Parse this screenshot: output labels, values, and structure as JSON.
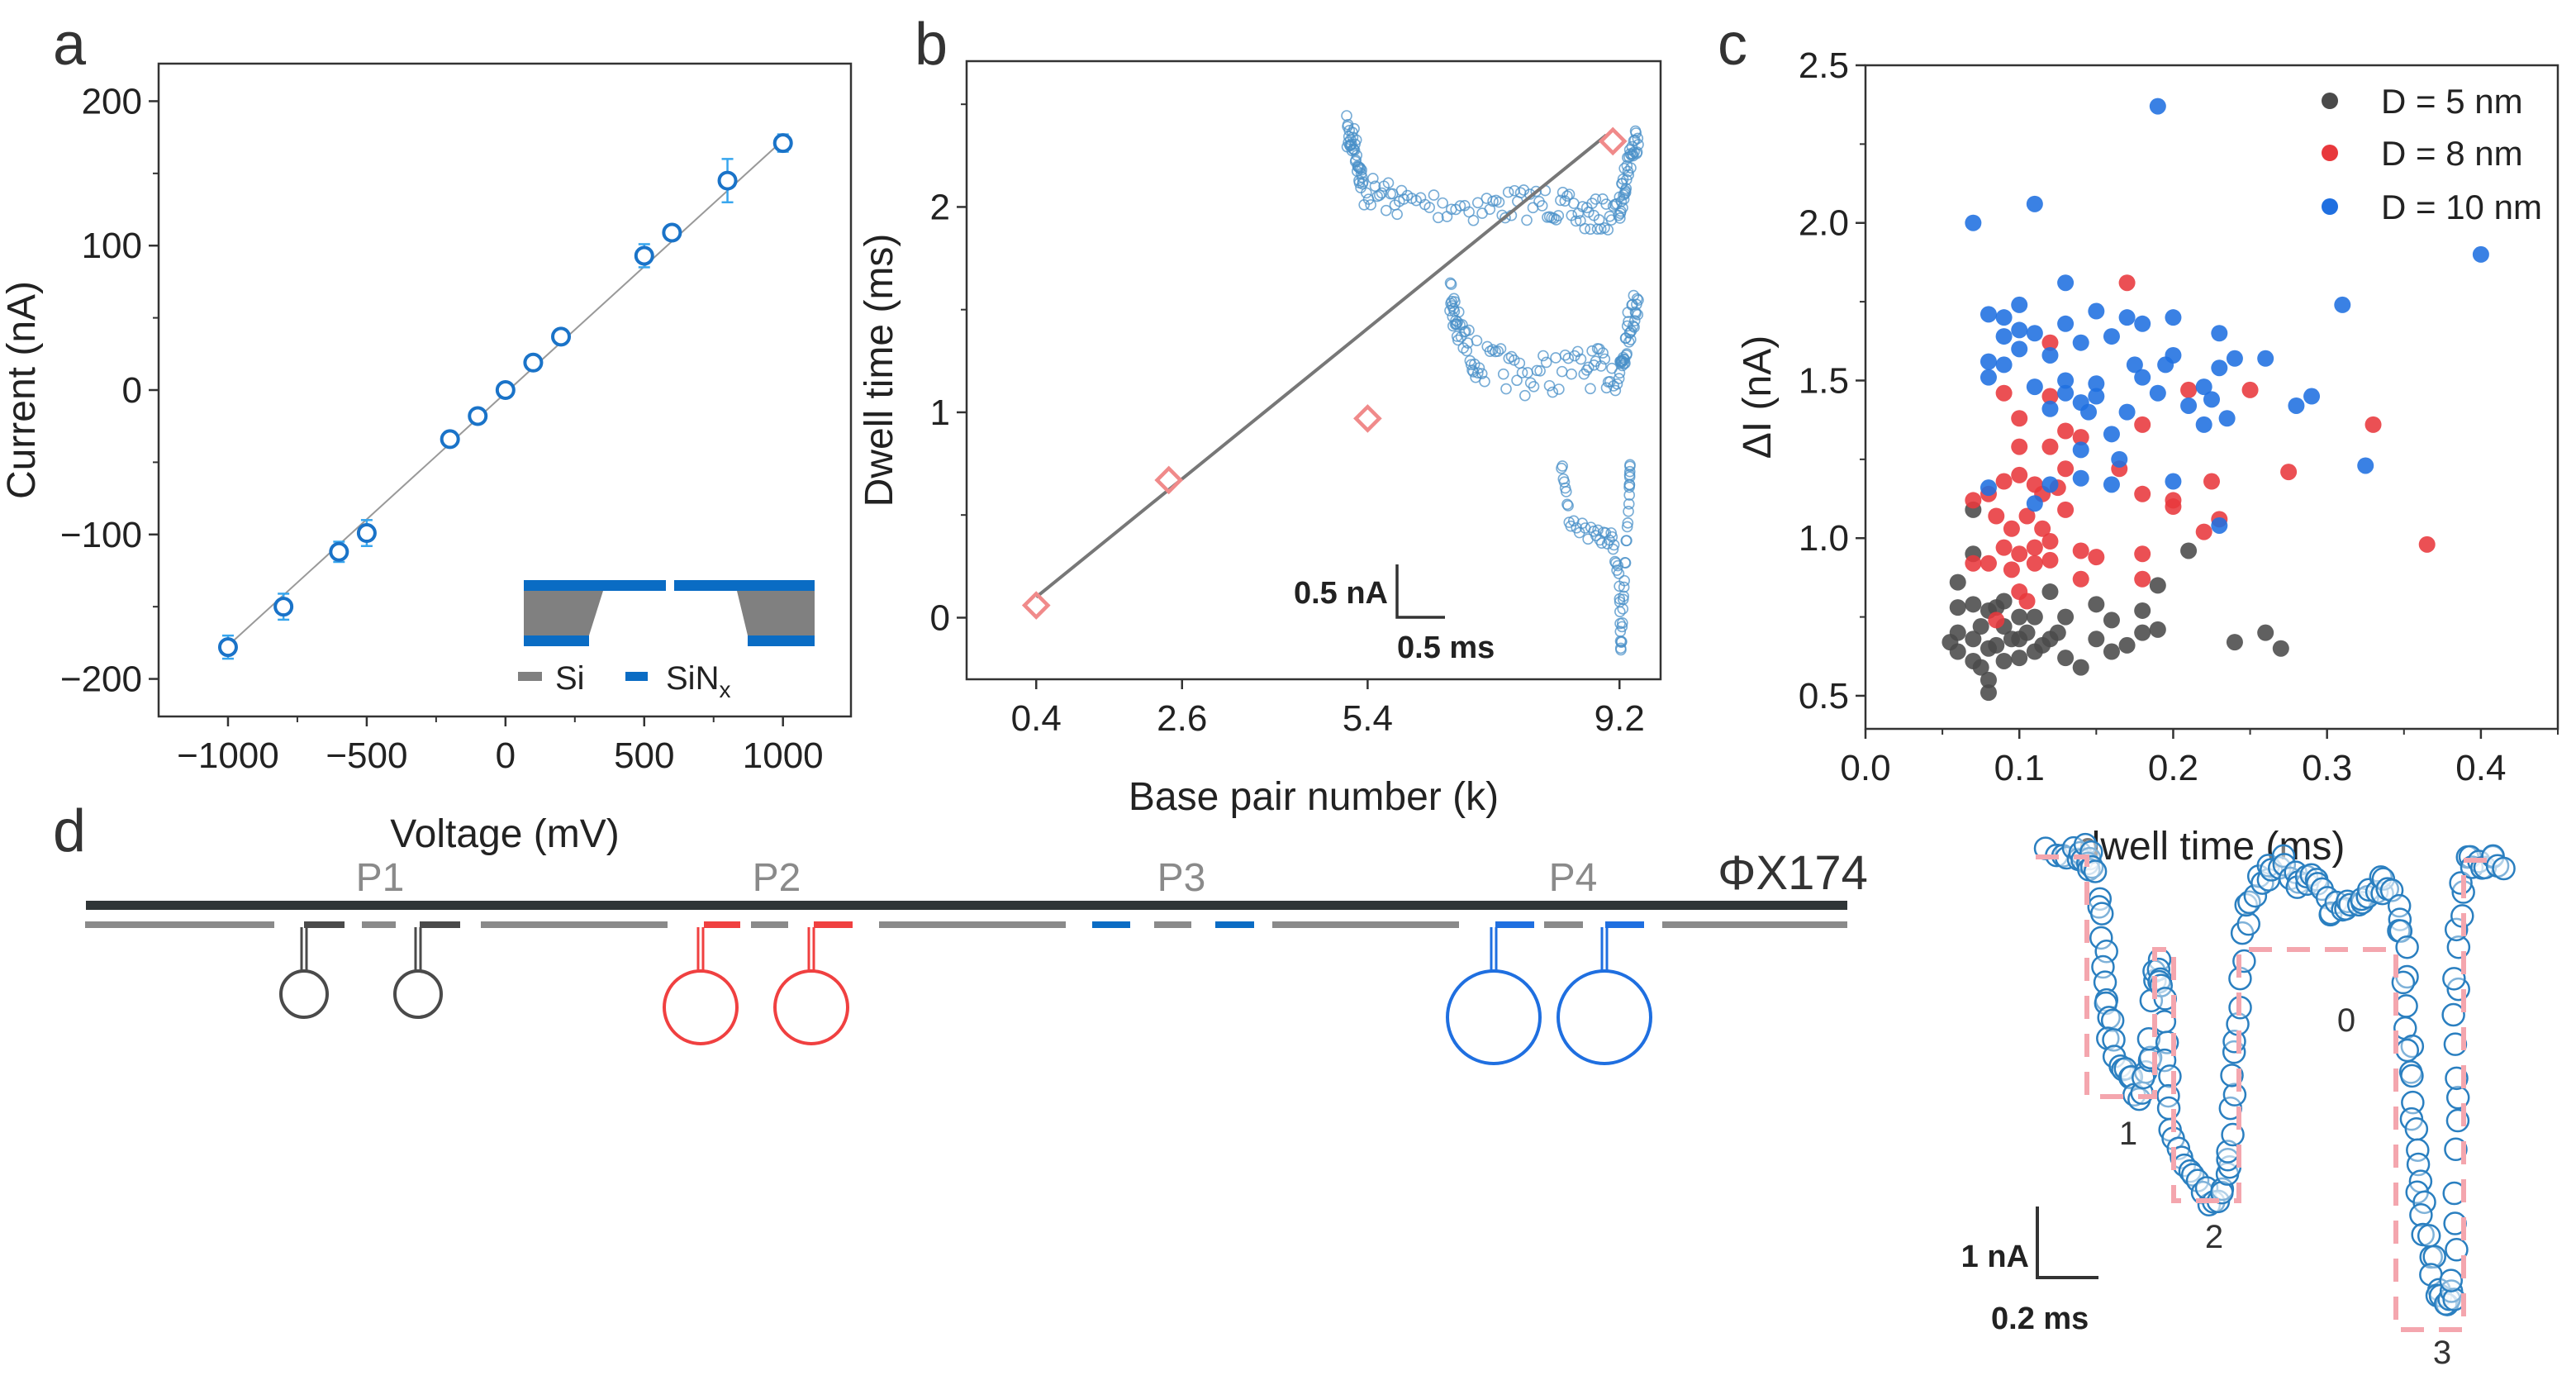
{
  "chart_data": [
    {
      "panel": "a",
      "type": "scatter",
      "xlabel": "Voltage (mV)",
      "ylabel": "Current (nA)",
      "xlim": [
        -1250,
        1245
      ],
      "ylim": [
        -226,
        226
      ],
      "xticks": [
        -1000,
        -500,
        0,
        500,
        1000
      ],
      "xtick_labels": [
        "−1000",
        "−500",
        "0",
        "500",
        "1000"
      ],
      "yticks": [
        -200,
        -100,
        0,
        100,
        200
      ],
      "ytick_labels": [
        "−200",
        "−100",
        "0",
        "100",
        "200"
      ],
      "x": [
        -1000,
        -800,
        -600,
        -500,
        -200,
        -100,
        0,
        100,
        200,
        500,
        600,
        800,
        1000
      ],
      "y": [
        -178,
        -150,
        -112,
        -99,
        -34,
        -18,
        0,
        19,
        37,
        93,
        109,
        145,
        171
      ],
      "yerr": [
        8,
        9,
        7,
        9,
        3,
        3,
        3,
        3,
        3,
        8,
        5,
        15,
        6
      ],
      "fit": {
        "x": [
          -1000,
          1000
        ],
        "y": [
          -177,
          173
        ]
      },
      "marker_color": "#1a73c8",
      "errorbar_color": "#38a6ee",
      "inset_legend": [
        {
          "label": "Si",
          "color": "#808080"
        },
        {
          "label": "SiN",
          "sub": "x",
          "color": "#0a6cc4"
        }
      ],
      "grid": false
    },
    {
      "panel": "b",
      "type": "scatter",
      "xlabel": "Base pair number (k)",
      "ylabel": "Dwell time (ms)",
      "xlim": [
        -0.65,
        9.82
      ],
      "ylim": [
        -0.3,
        2.71
      ],
      "xticks": [
        0.4,
        2.6,
        5.4,
        9.2
      ],
      "xtick_labels": [
        "0.4",
        "2.6",
        "5.4",
        "9.2"
      ],
      "yticks": [
        0,
        1,
        2
      ],
      "ytick_labels": [
        "0",
        "1",
        "2"
      ],
      "x": [
        0.4,
        2.4,
        5.4,
        9.1
      ],
      "y": [
        0.06,
        0.67,
        0.97,
        2.32
      ],
      "fit": {
        "x": [
          0.4,
          9.0
        ],
        "y": [
          0.1,
          2.35
        ]
      },
      "marker_color": "#f08a8a",
      "fit_color": "#777777",
      "trace_color": "#4a90c8",
      "scalebar": {
        "current": "0.5 nA",
        "time": "0.5 ms"
      },
      "grid": false
    },
    {
      "panel": "c",
      "type": "scatter",
      "xlabel": "dwell time (ms)",
      "ylabel": "ΔI (nA)",
      "xlim": [
        0,
        0.45
      ],
      "ylim": [
        0.395,
        2.5
      ],
      "xticks": [
        0,
        0.1,
        0.2,
        0.3,
        0.4
      ],
      "xtick_labels": [
        "0.0",
        "0.1",
        "0.2",
        "0.3",
        "0.4"
      ],
      "yticks": [
        0.5,
        1.0,
        1.5,
        2.0,
        2.5
      ],
      "ytick_labels": [
        "0.5",
        "1.0",
        "1.5",
        "2.0",
        "2.5"
      ],
      "legend_position": "top-right",
      "grid": false,
      "series": [
        {
          "name": "D = 5 nm",
          "color": "#4a4a4a",
          "points": [
            [
              0.21,
              0.96
            ],
            [
              0.19,
              0.85
            ],
            [
              0.26,
              0.7
            ],
            [
              0.27,
              0.65
            ],
            [
              0.24,
              0.67
            ],
            [
              0.19,
              0.71
            ],
            [
              0.18,
              0.77
            ],
            [
              0.18,
              0.7
            ],
            [
              0.17,
              0.66
            ],
            [
              0.16,
              0.74
            ],
            [
              0.16,
              0.64
            ],
            [
              0.15,
              0.79
            ],
            [
              0.15,
              0.68
            ],
            [
              0.14,
              0.59
            ],
            [
              0.13,
              0.62
            ],
            [
              0.13,
              0.75
            ],
            [
              0.12,
              0.83
            ],
            [
              0.12,
              0.68
            ],
            [
              0.11,
              0.75
            ],
            [
              0.11,
              0.64
            ],
            [
              0.1,
              0.68
            ],
            [
              0.1,
              0.62
            ],
            [
              0.09,
              0.72
            ],
            [
              0.09,
              0.61
            ],
            [
              0.08,
              0.51
            ],
            [
              0.08,
              0.55
            ],
            [
              0.08,
              0.65
            ],
            [
              0.08,
              0.77
            ],
            [
              0.07,
              0.68
            ],
            [
              0.07,
              0.61
            ],
            [
              0.07,
              0.79
            ],
            [
              0.07,
              1.09
            ],
            [
              0.07,
              0.95
            ],
            [
              0.06,
              0.78
            ],
            [
              0.06,
              0.86
            ],
            [
              0.06,
              0.7
            ],
            [
              0.055,
              0.67
            ],
            [
              0.06,
              0.64
            ],
            [
              0.075,
              0.72
            ],
            [
              0.085,
              0.66
            ],
            [
              0.095,
              0.68
            ],
            [
              0.105,
              0.7
            ],
            [
              0.115,
              0.66
            ],
            [
              0.125,
              0.7
            ],
            [
              0.09,
              0.8
            ],
            [
              0.075,
              0.59
            ],
            [
              0.1,
              0.75
            ],
            [
              0.085,
              0.78
            ]
          ]
        },
        {
          "name": "D = 8 nm",
          "color": "#e8383c",
          "points": [
            [
              0.17,
              1.81
            ],
            [
              0.12,
              1.62
            ],
            [
              0.09,
              1.46
            ],
            [
              0.12,
              1.45
            ],
            [
              0.1,
              1.38
            ],
            [
              0.13,
              1.34
            ],
            [
              0.1,
              1.29
            ],
            [
              0.12,
              1.29
            ],
            [
              0.14,
              1.32
            ],
            [
              0.18,
              1.36
            ],
            [
              0.21,
              1.47
            ],
            [
              0.25,
              1.47
            ],
            [
              0.33,
              1.36
            ],
            [
              0.275,
              1.21
            ],
            [
              0.225,
              1.18
            ],
            [
              0.18,
              1.14
            ],
            [
              0.2,
              1.1
            ],
            [
              0.2,
              1.12
            ],
            [
              0.23,
              1.06
            ],
            [
              0.22,
              1.02
            ],
            [
              0.365,
              0.98
            ],
            [
              0.18,
              0.95
            ],
            [
              0.18,
              0.87
            ],
            [
              0.14,
              0.96
            ],
            [
              0.15,
              0.94
            ],
            [
              0.14,
              0.87
            ],
            [
              0.165,
              1.22
            ],
            [
              0.13,
              1.09
            ],
            [
              0.08,
              1.14
            ],
            [
              0.07,
              1.12
            ],
            [
              0.07,
              0.92
            ],
            [
              0.08,
              0.92
            ],
            [
              0.09,
              1.18
            ],
            [
              0.1,
              1.2
            ],
            [
              0.11,
              1.17
            ],
            [
              0.085,
              1.07
            ],
            [
              0.095,
              1.03
            ],
            [
              0.105,
              1.07
            ],
            [
              0.115,
              1.03
            ],
            [
              0.09,
              0.97
            ],
            [
              0.1,
              0.95
            ],
            [
              0.11,
              0.97
            ],
            [
              0.12,
              0.99
            ],
            [
              0.095,
              0.9
            ],
            [
              0.11,
              0.92
            ],
            [
              0.12,
              0.93
            ],
            [
              0.1,
              0.83
            ],
            [
              0.105,
              0.8
            ],
            [
              0.085,
              0.74
            ],
            [
              0.13,
              1.22
            ],
            [
              0.115,
              1.14
            ],
            [
              0.125,
              1.16
            ]
          ]
        },
        {
          "name": "D = 10 nm",
          "color": "#1f6fe0",
          "points": [
            [
              0.19,
              2.37
            ],
            [
              0.07,
              2.0
            ],
            [
              0.11,
              2.06
            ],
            [
              0.4,
              1.9
            ],
            [
              0.13,
              1.81
            ],
            [
              0.31,
              1.74
            ],
            [
              0.08,
              1.71
            ],
            [
              0.09,
              1.7
            ],
            [
              0.1,
              1.74
            ],
            [
              0.1,
              1.66
            ],
            [
              0.11,
              1.65
            ],
            [
              0.09,
              1.64
            ],
            [
              0.1,
              1.6
            ],
            [
              0.08,
              1.56
            ],
            [
              0.08,
              1.51
            ],
            [
              0.09,
              1.55
            ],
            [
              0.11,
              1.48
            ],
            [
              0.12,
              1.58
            ],
            [
              0.13,
              1.68
            ],
            [
              0.14,
              1.62
            ],
            [
              0.15,
              1.72
            ],
            [
              0.16,
              1.64
            ],
            [
              0.17,
              1.7
            ],
            [
              0.18,
              1.68
            ],
            [
              0.2,
              1.7
            ],
            [
              0.2,
              1.58
            ],
            [
              0.23,
              1.65
            ],
            [
              0.24,
              1.57
            ],
            [
              0.26,
              1.57
            ],
            [
              0.23,
              1.54
            ],
            [
              0.28,
              1.42
            ],
            [
              0.29,
              1.45
            ],
            [
              0.325,
              1.23
            ],
            [
              0.23,
              1.04
            ],
            [
              0.2,
              1.18
            ],
            [
              0.16,
              1.17
            ],
            [
              0.12,
              1.17
            ],
            [
              0.08,
              1.16
            ],
            [
              0.11,
              1.11
            ],
            [
              0.14,
              1.19
            ],
            [
              0.14,
              1.28
            ],
            [
              0.16,
              1.33
            ],
            [
              0.13,
              1.5
            ],
            [
              0.13,
              1.46
            ],
            [
              0.14,
              1.43
            ],
            [
              0.15,
              1.49
            ],
            [
              0.15,
              1.45
            ],
            [
              0.12,
              1.41
            ],
            [
              0.145,
              1.4
            ],
            [
              0.17,
              1.4
            ],
            [
              0.175,
              1.55
            ],
            [
              0.18,
              1.51
            ],
            [
              0.19,
              1.46
            ],
            [
              0.21,
              1.42
            ],
            [
              0.22,
              1.48
            ],
            [
              0.22,
              1.36
            ],
            [
              0.235,
              1.38
            ],
            [
              0.225,
              1.44
            ],
            [
              0.165,
              1.25
            ],
            [
              0.195,
              1.55
            ]
          ]
        }
      ]
    }
  ],
  "panel_labels": [
    "a",
    "b",
    "c",
    "d"
  ],
  "diagram": {
    "title": "ΦX174",
    "primer_labels": [
      "P1",
      "P2",
      "P3",
      "P4"
    ],
    "colors": {
      "strand": "#2f3537",
      "segment": "#8a8a8a",
      "p1": "#4a4a4a",
      "p2": "#f04040",
      "p3": "#0a6cc4",
      "p4": "#1f6fe0"
    }
  },
  "trace_d": {
    "level_labels": [
      "1",
      "2",
      "0",
      "3"
    ],
    "scalebar": {
      "current": "1 nA",
      "time": "0.2 ms"
    },
    "trace_color": "#2a7fc0",
    "step_color": "#f4a6ae"
  }
}
